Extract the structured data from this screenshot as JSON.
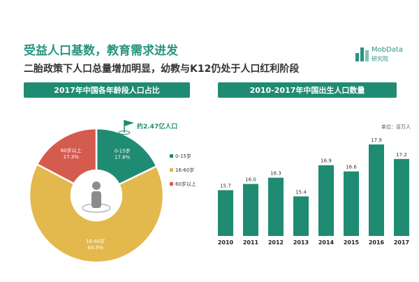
{
  "header": {
    "title": "受益人口基数，教育需求进发",
    "subtitle": "二胎政策下人口总量增加明显，幼教与K12仍处于人口红利阶段"
  },
  "logo": {
    "name": "MobData",
    "sub": "研究院"
  },
  "colors": {
    "primary": "#1f8b72",
    "yellow": "#e3b84d",
    "red": "#d65b4f",
    "center_grey": "#8c8c8c"
  },
  "chart_data": [
    {
      "type": "pie",
      "title": "2017年中国各年龄段人口占比",
      "annotation": "约2.47亿人口",
      "slices": [
        {
          "name": "0-15岁",
          "value": 17.8,
          "label": "17.8%"
        },
        {
          "name": "16-60岁",
          "value": 64.9,
          "label": "64.9%"
        },
        {
          "name": "60岁以上",
          "value": 17.3,
          "label": "17.3%"
        }
      ],
      "legend": [
        "0-15岁",
        "16-60岁",
        "60岁以上"
      ],
      "legend_position": "right"
    },
    {
      "type": "bar",
      "title": "2010-2017年中国出生人口数量",
      "unit": "单位：百万人",
      "categories": [
        "2010",
        "2011",
        "2012",
        "2013",
        "2014",
        "2015",
        "2016",
        "2017"
      ],
      "values": [
        15.7,
        16.0,
        16.3,
        15.4,
        16.9,
        16.6,
        17.9,
        17.2
      ],
      "value_labels": [
        "15.7",
        "16.0",
        "16.3",
        "15.4",
        "16.9",
        "16.6",
        "17.9",
        "17.2"
      ],
      "ylim": [
        13.5,
        18.4
      ],
      "grid": false
    }
  ]
}
